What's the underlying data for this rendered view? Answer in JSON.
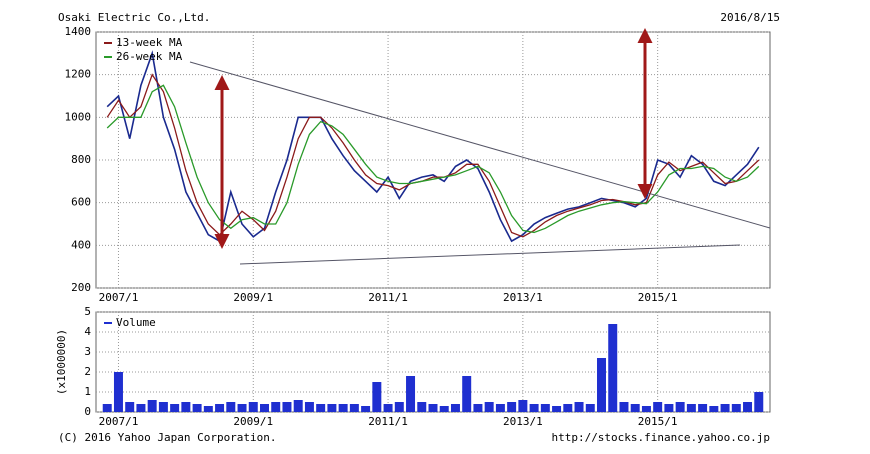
{
  "header": {
    "title": "Osaki Electric Co.,Ltd.",
    "date": "2016/8/15"
  },
  "footer": {
    "copyright": "(C) 2016 Yahoo Japan Corporation.",
    "url": "http://stocks.finance.yahoo.co.jp"
  },
  "chart_data": [
    {
      "type": "line",
      "x": [
        "2006/11",
        "2007/1",
        "2007/3",
        "2007/5",
        "2007/7",
        "2007/9",
        "2007/11",
        "2008/1",
        "2008/3",
        "2008/5",
        "2008/7",
        "2008/9",
        "2008/11",
        "2009/1",
        "2009/3",
        "2009/5",
        "2009/7",
        "2009/9",
        "2009/11",
        "2010/1",
        "2010/3",
        "2010/5",
        "2010/7",
        "2010/9",
        "2010/11",
        "2011/1",
        "2011/3",
        "2011/5",
        "2011/7",
        "2011/9",
        "2011/11",
        "2012/1",
        "2012/3",
        "2012/5",
        "2012/7",
        "2012/9",
        "2012/11",
        "2013/1",
        "2013/3",
        "2013/5",
        "2013/7",
        "2013/9",
        "2013/11",
        "2014/1",
        "2014/3",
        "2014/5",
        "2014/7",
        "2014/9",
        "2014/11",
        "2015/1",
        "2015/3",
        "2015/5",
        "2015/7",
        "2015/9",
        "2015/11",
        "2016/1",
        "2016/3",
        "2016/5",
        "2016/7"
      ],
      "series": [
        {
          "color": "#1a2a8f",
          "values": [
            1050,
            1100,
            900,
            1150,
            1300,
            1000,
            850,
            650,
            550,
            450,
            420,
            650,
            500,
            440,
            480,
            650,
            800,
            1000,
            1000,
            1000,
            900,
            820,
            750,
            700,
            650,
            720,
            620,
            700,
            720,
            730,
            700,
            770,
            800,
            760,
            650,
            520,
            420,
            450,
            500,
            530,
            550,
            570,
            580,
            600,
            620,
            610,
            600,
            580,
            620,
            800,
            780,
            720,
            820,
            780,
            700,
            680,
            730,
            780,
            860
          ]
        },
        {
          "name": "13-week MA",
          "color": "#8b1a1a",
          "values": [
            1000,
            1080,
            1000,
            1050,
            1200,
            1120,
            950,
            750,
            600,
            500,
            450,
            500,
            560,
            520,
            470,
            560,
            720,
            900,
            1000,
            1000,
            950,
            880,
            800,
            730,
            690,
            680,
            660,
            690,
            700,
            720,
            720,
            740,
            780,
            780,
            700,
            580,
            460,
            440,
            470,
            510,
            540,
            560,
            575,
            590,
            610,
            615,
            605,
            590,
            600,
            730,
            790,
            750,
            770,
            790,
            740,
            690,
            700,
            750,
            800
          ]
        },
        {
          "name": "26-week MA",
          "color": "#2a9a2a",
          "values": [
            950,
            1000,
            1000,
            1000,
            1120,
            1150,
            1050,
            880,
            720,
            600,
            520,
            480,
            520,
            530,
            500,
            500,
            600,
            780,
            920,
            980,
            960,
            920,
            850,
            780,
            720,
            700,
            690,
            690,
            700,
            710,
            720,
            730,
            750,
            770,
            740,
            650,
            540,
            470,
            460,
            480,
            510,
            540,
            560,
            575,
            590,
            600,
            605,
            600,
            595,
            650,
            730,
            760,
            760,
            770,
            760,
            720,
            700,
            720,
            770
          ]
        }
      ],
      "xlim": [
        "2006/9",
        "2016/9"
      ],
      "xticks": [
        "2007/1",
        "2009/1",
        "2011/1",
        "2013/1",
        "2015/1"
      ],
      "ylim": [
        200,
        1400
      ],
      "yticks": [
        200,
        400,
        600,
        800,
        1000,
        1200,
        1400
      ],
      "grid": true,
      "legend": "upper left"
    },
    {
      "type": "bar",
      "ylabel": "(x1000000)",
      "x": [
        "2006/11",
        "2007/1",
        "2007/3",
        "2007/5",
        "2007/7",
        "2007/9",
        "2007/11",
        "2008/1",
        "2008/3",
        "2008/5",
        "2008/7",
        "2008/9",
        "2008/11",
        "2009/1",
        "2009/3",
        "2009/5",
        "2009/7",
        "2009/9",
        "2009/11",
        "2010/1",
        "2010/3",
        "2010/5",
        "2010/7",
        "2010/9",
        "2010/11",
        "2011/1",
        "2011/3",
        "2011/5",
        "2011/7",
        "2011/9",
        "2011/11",
        "2012/1",
        "2012/3",
        "2012/5",
        "2012/7",
        "2012/9",
        "2012/11",
        "2013/1",
        "2013/3",
        "2013/5",
        "2013/7",
        "2013/9",
        "2013/11",
        "2014/1",
        "2014/3",
        "2014/5",
        "2014/7",
        "2014/9",
        "2014/11",
        "2015/1",
        "2015/3",
        "2015/5",
        "2015/7",
        "2015/9",
        "2015/11",
        "2016/1",
        "2016/3",
        "2016/5",
        "2016/7"
      ],
      "series": [
        {
          "name": "Volume",
          "color": "#1f2fd0",
          "values": [
            0.4,
            2.0,
            0.5,
            0.4,
            0.6,
            0.5,
            0.4,
            0.5,
            0.4,
            0.3,
            0.4,
            0.5,
            0.4,
            0.5,
            0.4,
            0.5,
            0.5,
            0.6,
            0.5,
            0.4,
            0.4,
            0.4,
            0.4,
            0.3,
            1.5,
            0.4,
            0.5,
            1.8,
            0.5,
            0.4,
            0.3,
            0.4,
            1.8,
            0.4,
            0.5,
            0.4,
            0.5,
            0.6,
            0.4,
            0.4,
            0.3,
            0.4,
            0.5,
            0.4,
            2.7,
            4.4,
            0.5,
            0.4,
            0.3,
            0.5,
            0.4,
            0.5,
            0.4,
            0.4,
            0.3,
            0.4,
            0.4,
            0.5,
            1.0
          ]
        }
      ],
      "xlim": [
        "2006/9",
        "2016/9"
      ],
      "xticks": [
        "2007/1",
        "2009/1",
        "2011/1",
        "2013/1",
        "2015/1"
      ],
      "ylim": [
        0,
        5
      ],
      "yticks": [
        0,
        1,
        2,
        3,
        4,
        5
      ],
      "grid": true,
      "legend": "upper left"
    }
  ]
}
